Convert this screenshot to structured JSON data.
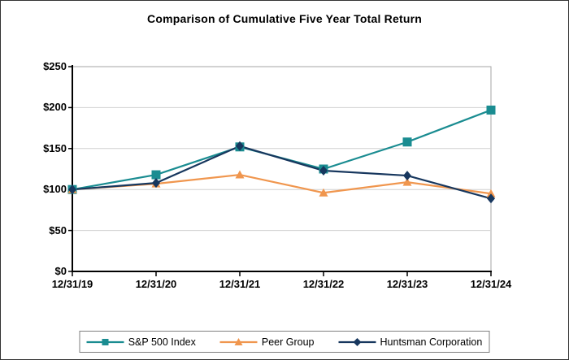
{
  "title": "Comparison of Cumulative Five Year Total Return",
  "chart_data": {
    "type": "line",
    "title": "Comparison of Cumulative Five Year Total Return",
    "x_labels": [
      "12/31/19",
      "12/31/20",
      "12/31/21",
      "12/31/22",
      "12/31/23",
      "12/31/24"
    ],
    "y_tick_labels": [
      "$0",
      "$50",
      "$100",
      "$150",
      "$200",
      "$250"
    ],
    "ylim": [
      0,
      250
    ],
    "y_tick_step": 50,
    "grid": true,
    "legend_position": "bottom",
    "series": [
      {
        "name": "S&P 500 Index",
        "marker": "square",
        "color": "#1a8c91",
        "values": [
          100,
          118,
          152,
          125,
          158,
          197
        ]
      },
      {
        "name": "Peer Group",
        "marker": "triangle",
        "color": "#f0964e",
        "values": [
          100,
          107,
          118,
          96,
          109,
          95
        ]
      },
      {
        "name": "Huntsman Corporation",
        "marker": "diamond",
        "color": "#17375e",
        "values": [
          100,
          108,
          153,
          123,
          117,
          89
        ]
      }
    ]
  },
  "colors": {
    "gridline": "#d0d0d0",
    "plot_frame": "#a6a6a6",
    "axis": "#000000",
    "legend_border": "#7f7f7f",
    "background": "#ffffff"
  }
}
